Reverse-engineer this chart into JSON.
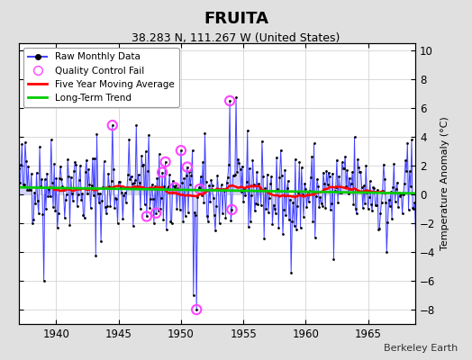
{
  "title": "FRUITA",
  "subtitle": "38.283 N, 111.267 W (United States)",
  "ylabel": "Temperature Anomaly (°C)",
  "credit": "Berkeley Earth",
  "xlim": [
    1937.0,
    1968.8
  ],
  "ylim": [
    -9,
    10.5
  ],
  "yticks": [
    -8,
    -6,
    -4,
    -2,
    0,
    2,
    4,
    6,
    8,
    10
  ],
  "xticks": [
    1940,
    1945,
    1950,
    1955,
    1960,
    1965
  ],
  "bg_color": "#e0e0e0",
  "plot_bg_color": "#ffffff",
  "raw_color": "#4444ff",
  "raw_fill_color": "#aaaaff",
  "raw_lw": 0.7,
  "dot_color": "#000000",
  "dot_size": 4,
  "ma_color": "#ff0000",
  "ma_lw": 1.8,
  "trend_color": "#00cc00",
  "trend_lw": 2.0,
  "qc_color": "#ff44ff",
  "seed": 42
}
